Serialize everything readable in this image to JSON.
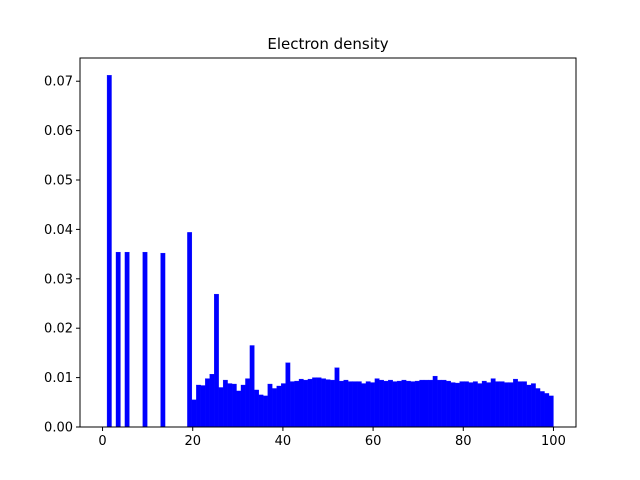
{
  "chart_data": {
    "type": "histogram",
    "title": "Electron density",
    "color": "#0000ff",
    "bins": [
      1,
      1.99,
      2.98,
      3.97,
      4.96,
      5.95,
      6.94,
      7.93,
      8.92,
      9.91,
      10.9,
      11.89,
      12.88,
      13.87,
      14.86,
      15.85,
      16.84,
      17.83,
      18.82,
      19.81,
      20.8,
      21.79,
      22.78,
      23.77,
      24.76,
      25.75,
      26.74,
      27.73,
      28.72,
      29.71,
      30.7,
      31.69,
      32.68,
      33.67,
      34.66,
      35.65,
      36.64,
      37.63,
      38.62,
      39.61,
      40.6,
      41.59,
      42.58,
      43.57,
      44.56,
      45.55,
      46.54,
      47.53,
      48.52,
      49.51,
      50.5,
      51.49,
      52.48,
      53.47,
      54.46,
      55.45,
      56.44,
      57.43,
      58.42,
      59.41,
      60.4,
      61.39,
      62.38,
      63.37,
      64.36,
      65.35,
      66.34,
      67.33,
      68.32,
      69.31,
      70.3,
      71.29,
      72.28,
      73.27,
      74.26,
      75.25,
      76.24,
      77.23,
      78.22,
      79.21,
      80.2,
      81.19,
      82.18,
      83.17,
      84.16,
      85.15,
      86.14,
      87.13,
      88.12,
      89.11,
      90.1,
      91.09,
      92.08,
      93.07,
      94.06,
      95.05,
      96.04,
      97.03,
      98.02,
      99.01,
      100
    ],
    "values": [
      0.0712,
      0,
      0.0354,
      0,
      0.0354,
      0,
      0,
      0,
      0.0354,
      0,
      0,
      0,
      0.0352,
      0,
      0,
      0,
      0,
      0,
      0.0394,
      0.0055,
      0.0085,
      0.0084,
      0.0098,
      0.0107,
      0.0269,
      0.008,
      0.0095,
      0.0088,
      0.0087,
      0.0073,
      0.0085,
      0.0098,
      0.0165,
      0.0075,
      0.0065,
      0.0063,
      0.0087,
      0.0078,
      0.0083,
      0.0088,
      0.013,
      0.0092,
      0.0093,
      0.0097,
      0.0095,
      0.0097,
      0.01,
      0.01,
      0.0098,
      0.0096,
      0.0095,
      0.012,
      0.0093,
      0.0095,
      0.0092,
      0.0092,
      0.0092,
      0.0088,
      0.0092,
      0.009,
      0.0098,
      0.0095,
      0.0093,
      0.0095,
      0.0092,
      0.0093,
      0.0095,
      0.0093,
      0.0092,
      0.0093,
      0.0095,
      0.0095,
      0.0095,
      0.0103,
      0.0095,
      0.0095,
      0.0093,
      0.009,
      0.0089,
      0.0092,
      0.0092,
      0.009,
      0.0092,
      0.0088,
      0.0093,
      0.009,
      0.0098,
      0.0092,
      0.0092,
      0.009,
      0.009,
      0.0097,
      0.0092,
      0.0092,
      0.0085,
      0.0088,
      0.0078,
      0.0072,
      0.0068,
      0.0063
    ],
    "xlim": [
      -5,
      105
    ],
    "xticks": [
      0,
      20,
      40,
      60,
      80,
      100
    ],
    "ylim": [
      0,
      0.0747
    ],
    "yticks": [
      {
        "value": 0,
        "label": "0.00"
      },
      {
        "value": 0.01,
        "label": "0.01"
      },
      {
        "value": 0.02,
        "label": "0.02"
      },
      {
        "value": 0.03,
        "label": "0.03"
      },
      {
        "value": 0.04,
        "label": "0.04"
      },
      {
        "value": 0.05,
        "label": "0.05"
      },
      {
        "value": 0.06,
        "label": "0.06"
      },
      {
        "value": 0.07,
        "label": "0.07"
      }
    ],
    "grid": false
  }
}
